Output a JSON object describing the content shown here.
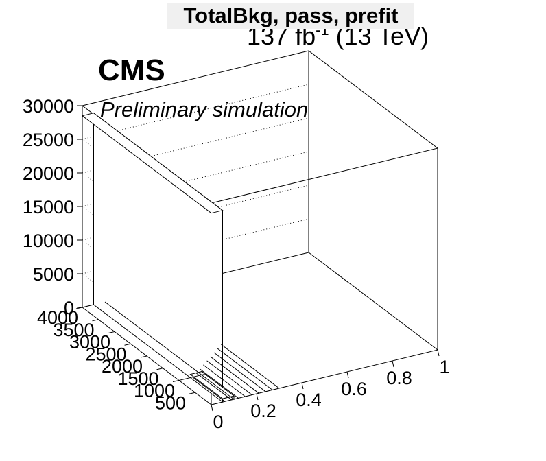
{
  "title": "TotalBkg, pass, prefit",
  "lumi": {
    "value": "137 fb",
    "exponent": "-1",
    "energy": "(13 TeV)"
  },
  "experiment": "CMS",
  "subtitle": "Preliminary simulation",
  "chart_data": {
    "type": "lego",
    "title": "TotalBkg, pass, prefit",
    "x_axis": {
      "range": [
        0,
        1
      ],
      "ticks": [
        "0",
        "0.2",
        "0.4",
        "0.6",
        "0.8",
        "1"
      ]
    },
    "y_axis": {
      "range": [
        0,
        4000
      ],
      "ticks": [
        "500",
        "1000",
        "1500",
        "2000",
        "2500",
        "3000",
        "3500",
        "4000"
      ]
    },
    "z_axis": {
      "range": [
        0,
        30000
      ],
      "ticks": [
        "0",
        "5000",
        "10000",
        "15000",
        "20000",
        "25000",
        "30000"
      ]
    },
    "grid": true,
    "bins": [
      {
        "x": [
          0.0,
          0.05
        ],
        "y": [
          0,
          4000
        ],
        "z": 28500
      },
      {
        "x": [
          0.05,
          0.1
        ],
        "y": [
          0,
          1000
        ],
        "z": 500
      },
      {
        "x": [
          0.05,
          0.1
        ],
        "y": [
          1000,
          4000
        ],
        "z": 0
      },
      {
        "x": [
          0.1,
          1.0
        ],
        "y": [
          0,
          4000
        ],
        "z": 0
      }
    ]
  }
}
